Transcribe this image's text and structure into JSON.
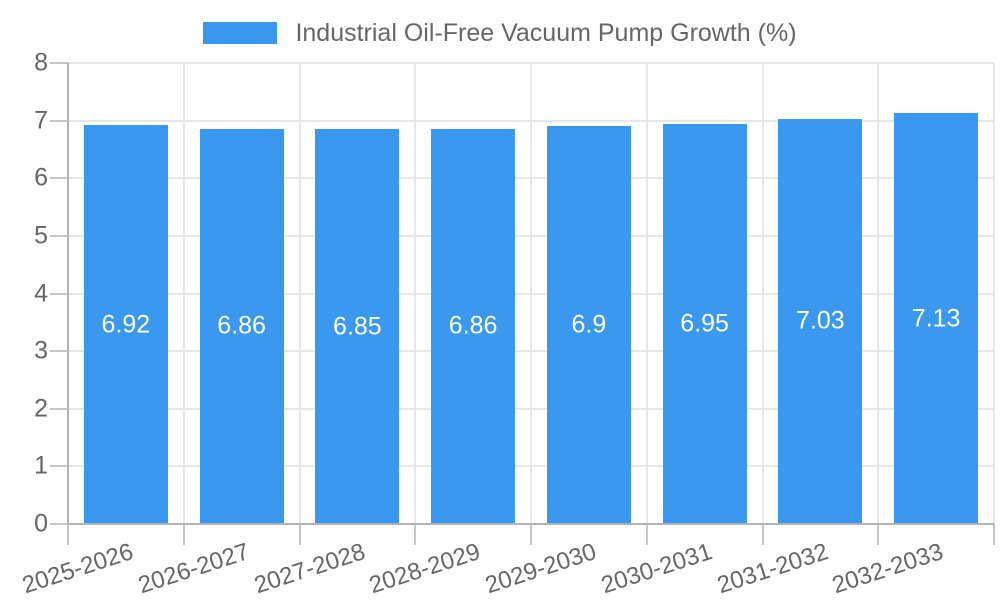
{
  "legend": {
    "label": "Industrial Oil-Free Vacuum Pump Growth (%)"
  },
  "chart_data": {
    "type": "bar",
    "title": "Industrial Oil-Free Vacuum Pump Growth (%)",
    "categories": [
      "2025-2026",
      "2026-2027",
      "2027-2028",
      "2028-2029",
      "2029-2030",
      "2030-2031",
      "2031-2032",
      "2032-2033"
    ],
    "values": [
      6.92,
      6.86,
      6.85,
      6.86,
      6.9,
      6.95,
      7.03,
      7.13
    ],
    "value_labels": [
      "6.92",
      "6.86",
      "6.85",
      "6.86",
      "6.9",
      "6.95",
      "7.03",
      "7.13"
    ],
    "xlabel": "",
    "ylabel": "",
    "ylim": [
      0,
      8
    ],
    "ytick_labels": [
      "0",
      "1",
      "2",
      "3",
      "4",
      "5",
      "6",
      "7",
      "8"
    ],
    "grid": true,
    "legend_position": "top-center",
    "bar_color": "#3a99ee",
    "value_label_color": "#ffffff",
    "axis_text_color": "#666666",
    "gridline_color": "#e7e7e7",
    "axis_line_color": "#b3b3b3"
  }
}
